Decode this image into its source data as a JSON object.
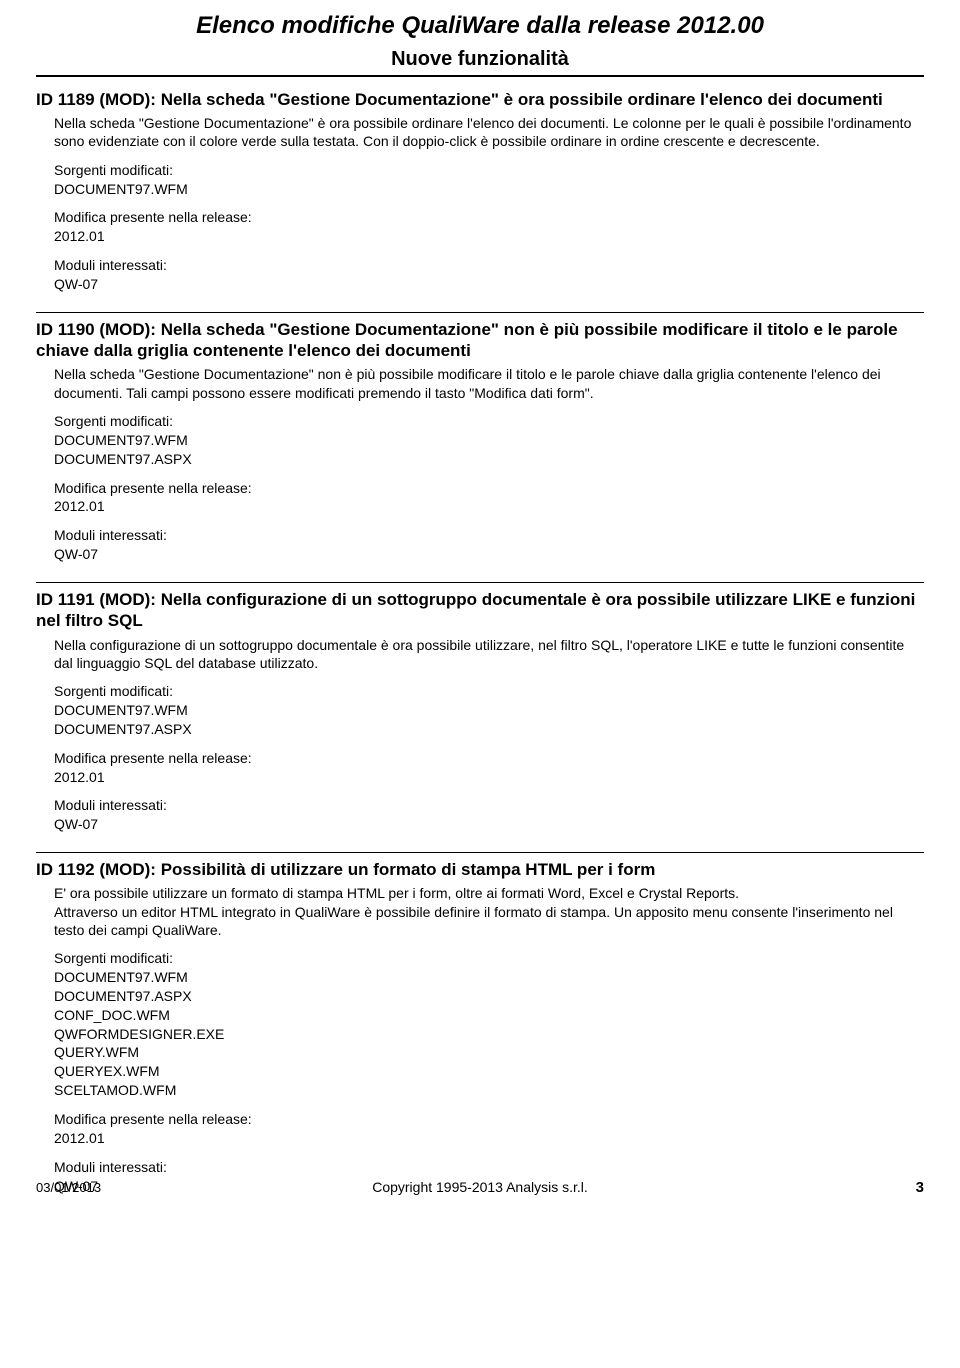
{
  "doc": {
    "title": "Elenco modifiche QualiWare dalla release 2012.00",
    "subtitle": "Nuove funzionalità"
  },
  "labels": {
    "sources": "Sorgenti modificati:",
    "release": "Modifica presente nella release:",
    "modules": "Moduli interessati:"
  },
  "entries": [
    {
      "title": "ID 1189 (MOD): Nella scheda \"Gestione Documentazione\" è ora possibile ordinare l'elenco dei documenti",
      "desc": "Nella scheda \"Gestione Documentazione\" è ora possibile ordinare l'elenco dei documenti. Le colonne per le quali è possibile l'ordinamento sono evidenziate con il colore verde sulla testata. Con il doppio-click è possibile ordinare in ordine crescente e decrescente.",
      "sources": [
        "DOCUMENT97.WFM"
      ],
      "release": "2012.01",
      "modules": [
        "QW-07"
      ]
    },
    {
      "title": "ID 1190 (MOD): Nella scheda \"Gestione Documentazione\" non è più possibile modificare il titolo e le parole chiave dalla griglia contenente l'elenco dei documenti",
      "desc": "Nella scheda \"Gestione Documentazione\" non è più possibile modificare il titolo e le parole chiave dalla griglia contenente l'elenco dei documenti. Tali campi possono essere modificati premendo il tasto \"Modifica dati form\".",
      "sources": [
        "DOCUMENT97.WFM",
        "DOCUMENT97.ASPX"
      ],
      "release": "2012.01",
      "modules": [
        "QW-07"
      ]
    },
    {
      "title": "ID 1191 (MOD): Nella configurazione di un sottogruppo documentale è ora possibile utilizzare LIKE e funzioni nel filtro SQL",
      "desc": "Nella configurazione di un sottogruppo documentale è ora possibile utilizzare, nel filtro SQL, l'operatore LIKE e tutte le funzioni consentite dal linguaggio SQL del database utilizzato.",
      "sources": [
        "DOCUMENT97.WFM",
        "DOCUMENT97.ASPX"
      ],
      "release": "2012.01",
      "modules": [
        "QW-07"
      ]
    },
    {
      "title": "ID 1192 (MOD): Possibilità di utilizzare un formato di stampa HTML per i form",
      "desc": "E' ora possibile utilizzare un formato di stampa HTML per i form, oltre ai formati Word, Excel e Crystal Reports.\nAttraverso un editor HTML integrato in QualiWare è possibile definire il formato di stampa. Un apposito menu consente l'inserimento nel testo dei campi QualiWare.",
      "sources": [
        "DOCUMENT97.WFM",
        "DOCUMENT97.ASPX",
        "CONF_DOC.WFM",
        "QWFORMDESIGNER.EXE",
        "QUERY.WFM",
        "QUERYEX.WFM",
        "SCELTAMOD.WFM"
      ],
      "release": "2012.01",
      "modules": [
        "QW-07"
      ]
    }
  ],
  "footer": {
    "date": "03/01/2013",
    "copyright": "Copyright 1995-2013 Analysis s.r.l.",
    "page": "3"
  }
}
